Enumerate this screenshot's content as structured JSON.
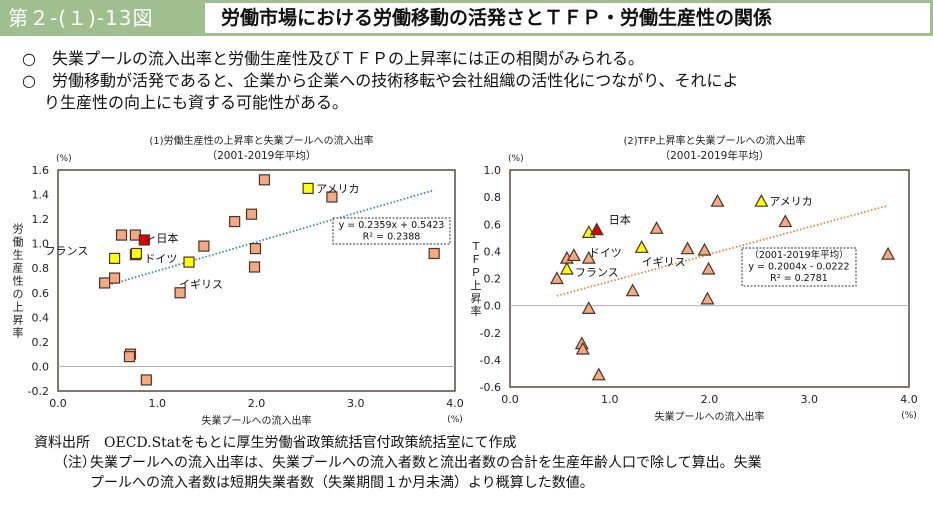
{
  "header": {
    "figure_number": "第２-(１)-13図",
    "title": "労働市場における労働移動の活発さとＴＦＰ・労働生産性の関係",
    "bg_color": "#9fbf8f"
  },
  "summary": {
    "bullet": "○",
    "points": [
      "失業プールの流入出率と労働生産性及びＴＦＰの上昇率には正の相関がみられる。",
      "労働移動が活発であると、企業から企業への技術移転や会社組織の活性化につながり、それによ"
    ],
    "continuation": "り生産性の向上にも資する可能性がある。"
  },
  "chart_data": [
    {
      "type": "scatter",
      "title": "(1)労働生産性の上昇率と失業プールへの流入出率",
      "subtitle": "（2001-2019年平均）",
      "xlabel": "失業プールへの流入出率",
      "x_unit": "(%)",
      "ylabel": "労働生産性の上昇率",
      "y_unit": "(%)",
      "xlim": [
        0.0,
        4.0
      ],
      "ylim": [
        -0.2,
        1.6
      ],
      "xticks": [
        "0.0",
        "1.0",
        "2.0",
        "3.0",
        "4.0"
      ],
      "yticks": [
        "-0.2",
        "0.0",
        "0.2",
        "0.4",
        "0.6",
        "0.8",
        "1.0",
        "1.2",
        "1.4",
        "1.6"
      ],
      "marker": "square",
      "colors": {
        "default": "#f4a982",
        "highlight": "#ffff00",
        "japan": "#e00000",
        "trend": "#2e86c8"
      },
      "points": [
        {
          "x": 0.47,
          "y": 0.68,
          "group": "default"
        },
        {
          "x": 0.57,
          "y": 0.72,
          "group": "default"
        },
        {
          "x": 0.64,
          "y": 1.07,
          "group": "default"
        },
        {
          "x": 0.78,
          "y": 1.07,
          "group": "default"
        },
        {
          "x": 0.78,
          "y": 0.91,
          "group": "default"
        },
        {
          "x": 0.73,
          "y": 0.1,
          "group": "default"
        },
        {
          "x": 0.72,
          "y": 0.08,
          "group": "default"
        },
        {
          "x": 0.89,
          "y": -0.11,
          "group": "default"
        },
        {
          "x": 1.23,
          "y": 0.6,
          "group": "default"
        },
        {
          "x": 1.47,
          "y": 0.98,
          "group": "default"
        },
        {
          "x": 1.78,
          "y": 1.18,
          "group": "default"
        },
        {
          "x": 1.95,
          "y": 1.24,
          "group": "default"
        },
        {
          "x": 2.08,
          "y": 1.52,
          "group": "default"
        },
        {
          "x": 1.99,
          "y": 0.96,
          "group": "default"
        },
        {
          "x": 1.98,
          "y": 0.81,
          "group": "default"
        },
        {
          "x": 2.76,
          "y": 1.38,
          "group": "default"
        },
        {
          "x": 3.79,
          "y": 0.92,
          "group": "default"
        },
        {
          "x": 0.57,
          "y": 0.88,
          "group": "highlight",
          "label": "フランス"
        },
        {
          "x": 0.79,
          "y": 0.92,
          "group": "highlight",
          "label": "ドイツ"
        },
        {
          "x": 1.32,
          "y": 0.85,
          "group": "highlight",
          "label": "イギリス"
        },
        {
          "x": 2.52,
          "y": 1.45,
          "group": "highlight",
          "label": "アメリカ"
        },
        {
          "x": 0.87,
          "y": 1.03,
          "group": "japan",
          "label": "日本"
        }
      ],
      "trendline": {
        "slope": 0.2359,
        "intercept": 0.5423,
        "x_range": [
          0.47,
          3.79
        ]
      },
      "equation_box": [
        "y = 0.2359x + 0.5423",
        "R² = 0.2388"
      ]
    },
    {
      "type": "scatter",
      "title": "(2)TFP上昇率と失業プールへの流入出率",
      "subtitle": "（2001-2019年平均）",
      "xlabel": "失業プールへの流入出率",
      "x_unit": "(%)",
      "ylabel": "ＴＦＰ上昇率",
      "y_unit": "(%)",
      "xlim": [
        0.0,
        4.0
      ],
      "ylim": [
        -0.6,
        1.0
      ],
      "xticks": [
        "0.0",
        "1.0",
        "2.0",
        "3.0",
        "4.0"
      ],
      "yticks": [
        "-0.6",
        "-0.4",
        "-0.2",
        "0.0",
        "0.2",
        "0.4",
        "0.6",
        "0.8",
        "1.0"
      ],
      "marker": "triangle",
      "colors": {
        "default": "#f4a982",
        "highlight": "#ffff00",
        "japan": "#e00000",
        "trend": "#f08030"
      },
      "points": [
        {
          "x": 0.47,
          "y": 0.2,
          "group": "default"
        },
        {
          "x": 0.57,
          "y": 0.35,
          "group": "default"
        },
        {
          "x": 0.64,
          "y": 0.37,
          "group": "default"
        },
        {
          "x": 0.79,
          "y": 0.35,
          "group": "default"
        },
        {
          "x": 0.79,
          "y": -0.02,
          "group": "default"
        },
        {
          "x": 0.72,
          "y": -0.28,
          "group": "default"
        },
        {
          "x": 0.73,
          "y": -0.32,
          "group": "default"
        },
        {
          "x": 0.89,
          "y": -0.51,
          "group": "default"
        },
        {
          "x": 1.23,
          "y": 0.11,
          "group": "default"
        },
        {
          "x": 1.47,
          "y": 0.57,
          "group": "default"
        },
        {
          "x": 1.78,
          "y": 0.42,
          "group": "default"
        },
        {
          "x": 1.95,
          "y": 0.41,
          "group": "default"
        },
        {
          "x": 2.08,
          "y": 0.77,
          "group": "default"
        },
        {
          "x": 1.99,
          "y": 0.27,
          "group": "default"
        },
        {
          "x": 1.98,
          "y": 0.05,
          "group": "default"
        },
        {
          "x": 2.76,
          "y": 0.62,
          "group": "default"
        },
        {
          "x": 3.79,
          "y": 0.38,
          "group": "default"
        },
        {
          "x": 0.57,
          "y": 0.27,
          "group": "highlight",
          "label": "フランス"
        },
        {
          "x": 0.79,
          "y": 0.54,
          "group": "highlight",
          "label": "ドイツ"
        },
        {
          "x": 1.32,
          "y": 0.43,
          "group": "highlight",
          "label": "イギリス"
        },
        {
          "x": 2.52,
          "y": 0.77,
          "group": "highlight",
          "label": "アメリカ"
        },
        {
          "x": 0.87,
          "y": 0.56,
          "group": "japan",
          "label": "日本"
        }
      ],
      "trendline": {
        "slope": 0.2004,
        "intercept": -0.0222,
        "x_range": [
          0.47,
          3.79
        ]
      },
      "equation_box": [
        "（2001-2019年平均）",
        "y = 0.2004x - 0.0222",
        "R² = 0.2781"
      ]
    }
  ],
  "footer": {
    "source_label": "資料出所",
    "source_text": "OECD.Statをもとに厚生労働省政策統括官付政策統括室にて作成",
    "note_label": "（注）",
    "note_line1": "失業プールへの流入出率は、失業プールへの流入者数と流出者数の合計を生産年齢人口で除して算出。失業",
    "note_line2": "プールへの流入者数は短期失業者数（失業期間１か月未満）より概算した数値。"
  }
}
